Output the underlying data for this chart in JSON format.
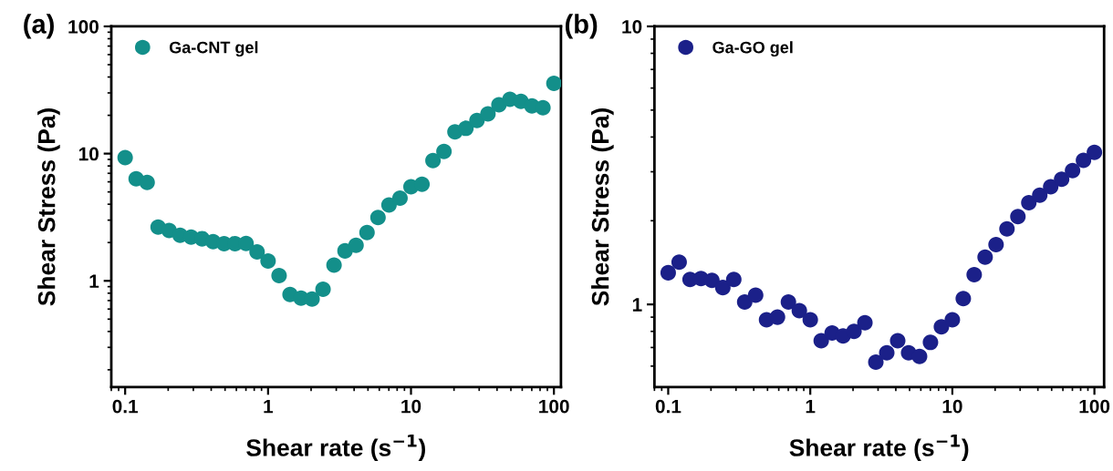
{
  "chart_data": [
    {
      "type": "scatter",
      "annotations": [
        "(a)"
      ],
      "xlabel": "Shear rate (s$^{−1}$)",
      "ylabel": "Shear Stress (Pa)",
      "log": "xy",
      "xlim": [
        0.08,
        112
      ],
      "ylim": [
        0.146,
        100
      ],
      "xticks": [
        0.1,
        1,
        10,
        100
      ],
      "yticks": [
        1,
        10,
        100
      ],
      "grid": false,
      "legend": "top left",
      "marker": "circle",
      "x": [
        0.1,
        0.1194,
        0.1425,
        0.1701,
        0.2031,
        0.2424,
        0.2894,
        0.3455,
        0.4125,
        0.4924,
        0.5878,
        0.7017,
        0.8377,
        1,
        1.194,
        1.425,
        1.701,
        2.031,
        2.424,
        2.894,
        3.455,
        4.125,
        4.924,
        5.878,
        7.017,
        8.377,
        10,
        11.94,
        14.25,
        17.01,
        20.31,
        24.24,
        28.94,
        34.55,
        41.25,
        49.24,
        58.78,
        70.17,
        83.77,
        100
      ],
      "series": [
        {
          "name": "Ga-CNT gel",
          "color": "#138f8a",
          "values": [
            9.3,
            6.34,
            5.94,
            2.65,
            2.49,
            2.28,
            2.21,
            2.14,
            2.03,
            1.96,
            1.96,
            1.97,
            1.69,
            1.43,
            1.1,
            0.78,
            0.73,
            0.72,
            0.86,
            1.33,
            1.72,
            1.9,
            2.4,
            3.15,
            3.95,
            4.47,
            5.48,
            5.75,
            8.82,
            10.4,
            14.8,
            15.8,
            18.2,
            20.5,
            24.2,
            26.7,
            25.7,
            23.7,
            22.9,
            35.7
          ]
        }
      ]
    },
    {
      "type": "scatter",
      "annotations": [
        "(b)"
      ],
      "xlabel": "Shear rate (s$^{−1}$)",
      "ylabel": "Shear Stress (Pa)",
      "log": "xy",
      "xlim": [
        0.08,
        117
      ],
      "ylim": [
        0.504,
        10
      ],
      "xticks": [
        0.1,
        1,
        10,
        100
      ],
      "yticks": [
        1,
        10
      ],
      "grid": false,
      "legend": "top left",
      "marker": "circle",
      "x": [
        0.1,
        0.1194,
        0.1425,
        0.1701,
        0.2031,
        0.2424,
        0.2894,
        0.3455,
        0.4125,
        0.4924,
        0.5878,
        0.7017,
        0.8377,
        1,
        1.194,
        1.425,
        1.701,
        2.031,
        2.424,
        2.894,
        3.455,
        4.125,
        4.924,
        5.878,
        7.017,
        8.377,
        10,
        11.94,
        14.25,
        17.01,
        20.31,
        24.24,
        28.94,
        34.55,
        41.25,
        49.24,
        58.78,
        70.17,
        83.77,
        100
      ],
      "series": [
        {
          "name": "Ga-GO gel",
          "color": "#1b2089",
          "values": [
            1.3,
            1.42,
            1.23,
            1.24,
            1.22,
            1.15,
            1.23,
            1.02,
            1.08,
            0.88,
            0.9,
            1.02,
            0.95,
            0.88,
            0.74,
            0.79,
            0.77,
            0.8,
            0.86,
            0.62,
            0.67,
            0.74,
            0.67,
            0.65,
            0.73,
            0.83,
            0.88,
            1.05,
            1.28,
            1.48,
            1.64,
            1.87,
            2.07,
            2.32,
            2.47,
            2.65,
            2.82,
            3.03,
            3.3,
            3.52
          ]
        }
      ]
    }
  ]
}
